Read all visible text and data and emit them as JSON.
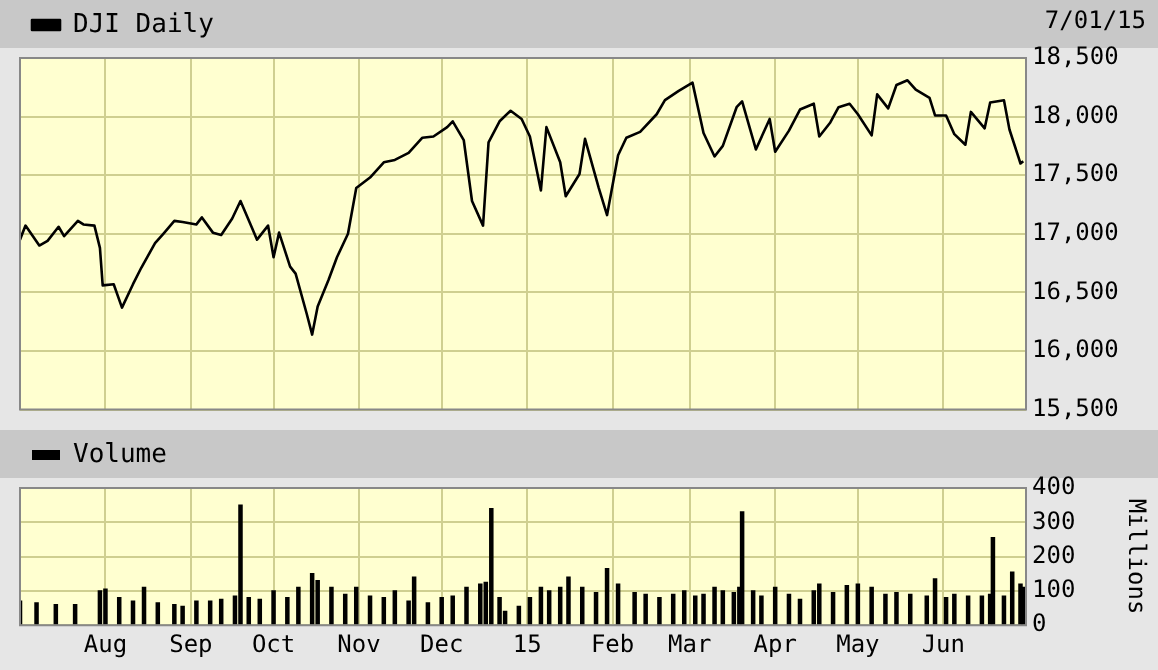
{
  "chart_data": [
    {
      "type": "line",
      "annotations": [
        "7/01/15"
      ],
      "legend": "top left",
      "grid": true,
      "tick_labels": "y",
      "marker": "none",
      "line_style": "solid",
      "xlim": [
        "2014-07-01",
        "2015-07-01"
      ],
      "xticks": [
        {
          "value": "2014-08-01",
          "label": null
        },
        {
          "value": "2014-09-01",
          "label": null
        },
        {
          "value": "2014-10-01",
          "label": null
        },
        {
          "value": "2014-11-01",
          "label": null
        },
        {
          "value": "2014-12-01",
          "label": null
        },
        {
          "value": "2015-01-01",
          "label": null
        },
        {
          "value": "2015-02-01",
          "label": null
        },
        {
          "value": "2015-03-01",
          "label": null
        },
        {
          "value": "2015-04-01",
          "label": null
        },
        {
          "value": "2015-05-01",
          "label": null
        },
        {
          "value": "2015-06-01",
          "label": null
        }
      ],
      "ylim": [
        15500,
        18500
      ],
      "yticks": [
        {
          "value": 15500,
          "label": "15,500"
        },
        {
          "value": 16000,
          "label": "16,000"
        },
        {
          "value": 16500,
          "label": "16,500"
        },
        {
          "value": 17000,
          "label": "17,000"
        },
        {
          "value": 17500,
          "label": "17,500"
        },
        {
          "value": 18000,
          "label": "18,000"
        },
        {
          "value": 18500,
          "label": "18,500"
        }
      ],
      "x": [
        "2014-07-01",
        "2014-07-03",
        "2014-07-08",
        "2014-07-11",
        "2014-07-15",
        "2014-07-17",
        "2014-07-22",
        "2014-07-24",
        "2014-07-28",
        "2014-07-30",
        "2014-07-31",
        "2014-08-04",
        "2014-08-07",
        "2014-08-11",
        "2014-08-14",
        "2014-08-19",
        "2014-08-22",
        "2014-08-26",
        "2014-08-29",
        "2014-09-03",
        "2014-09-05",
        "2014-09-09",
        "2014-09-12",
        "2014-09-16",
        "2014-09-19",
        "2014-09-23",
        "2014-09-25",
        "2014-09-29",
        "2014-10-01",
        "2014-10-03",
        "2014-10-07",
        "2014-10-09",
        "2014-10-13",
        "2014-10-15",
        "2014-10-17",
        "2014-10-21",
        "2014-10-24",
        "2014-10-28",
        "2014-10-31",
        "2014-11-05",
        "2014-11-10",
        "2014-11-14",
        "2014-11-19",
        "2014-11-24",
        "2014-11-28",
        "2014-12-03",
        "2014-12-05",
        "2014-12-09",
        "2014-12-12",
        "2014-12-16",
        "2014-12-18",
        "2014-12-22",
        "2014-12-26",
        "2014-12-30",
        "2015-01-02",
        "2015-01-06",
        "2015-01-08",
        "2015-01-13",
        "2015-01-15",
        "2015-01-20",
        "2015-01-22",
        "2015-01-27",
        "2015-01-30",
        "2015-02-03",
        "2015-02-06",
        "2015-02-11",
        "2015-02-17",
        "2015-02-20",
        "2015-02-25",
        "2015-03-02",
        "2015-03-06",
        "2015-03-10",
        "2015-03-13",
        "2015-03-18",
        "2015-03-20",
        "2015-03-25",
        "2015-03-30",
        "2015-04-01",
        "2015-04-06",
        "2015-04-10",
        "2015-04-15",
        "2015-04-17",
        "2015-04-21",
        "2015-04-24",
        "2015-04-28",
        "2015-05-01",
        "2015-05-06",
        "2015-05-08",
        "2015-05-12",
        "2015-05-15",
        "2015-05-19",
        "2015-05-22",
        "2015-05-27",
        "2015-05-29",
        "2015-06-02",
        "2015-06-05",
        "2015-06-09",
        "2015-06-11",
        "2015-06-16",
        "2015-06-18",
        "2015-06-23",
        "2015-06-25",
        "2015-06-29",
        "2015-06-30"
      ],
      "series": [
        {
          "name": "DJI Daily",
          "color": "#000000",
          "values": [
            16950,
            17070,
            16900,
            16940,
            17060,
            16980,
            17110,
            17080,
            17070,
            16880,
            16560,
            16570,
            16370,
            16570,
            16710,
            16920,
            17000,
            17110,
            17100,
            17080,
            17140,
            17010,
            16990,
            17130,
            17280,
            17060,
            16950,
            17070,
            16800,
            17010,
            16720,
            16660,
            16320,
            16140,
            16380,
            16610,
            16800,
            17000,
            17390,
            17480,
            17610,
            17630,
            17690,
            17820,
            17830,
            17910,
            17960,
            17800,
            17280,
            17070,
            17780,
            17960,
            18050,
            17980,
            17830,
            17370,
            17910,
            17610,
            17320,
            17510,
            17810,
            17390,
            17160,
            17670,
            17820,
            17870,
            18020,
            18140,
            18220,
            18290,
            17860,
            17660,
            17750,
            18080,
            18130,
            17720,
            17980,
            17700,
            17880,
            18060,
            18110,
            17830,
            17950,
            18080,
            18110,
            18020,
            17840,
            18190,
            18070,
            18270,
            18310,
            18230,
            18160,
            18010,
            18010,
            17850,
            17760,
            18040,
            17900,
            18120,
            18140,
            17890,
            17600,
            17620
          ]
        }
      ]
    },
    {
      "type": "bar",
      "legend": "top left",
      "grid": true,
      "ylabel": "Millions",
      "xlim": [
        "2014-07-01",
        "2015-07-01"
      ],
      "xticks": [
        {
          "value": "2014-08-01",
          "label": "Aug"
        },
        {
          "value": "2014-09-01",
          "label": "Sep"
        },
        {
          "value": "2014-10-01",
          "label": "Oct"
        },
        {
          "value": "2014-11-01",
          "label": "Nov"
        },
        {
          "value": "2014-12-01",
          "label": "Dec"
        },
        {
          "value": "2015-01-01",
          "label": "15"
        },
        {
          "value": "2015-02-01",
          "label": "Feb"
        },
        {
          "value": "2015-03-01",
          "label": "Mar"
        },
        {
          "value": "2015-04-01",
          "label": "Apr"
        },
        {
          "value": "2015-05-01",
          "label": "May"
        },
        {
          "value": "2015-06-01",
          "label": "Jun"
        }
      ],
      "ylim": [
        0,
        400
      ],
      "yticks": [
        0,
        100,
        200,
        300,
        400
      ],
      "x": [
        "2014-07-01",
        "2014-07-07",
        "2014-07-14",
        "2014-07-21",
        "2014-07-30",
        "2014-08-01",
        "2014-08-06",
        "2014-08-11",
        "2014-08-15",
        "2014-08-20",
        "2014-08-26",
        "2014-08-29",
        "2014-09-03",
        "2014-09-08",
        "2014-09-12",
        "2014-09-17",
        "2014-09-19",
        "2014-09-22",
        "2014-09-26",
        "2014-10-01",
        "2014-10-06",
        "2014-10-10",
        "2014-10-15",
        "2014-10-17",
        "2014-10-22",
        "2014-10-27",
        "2014-10-31",
        "2014-11-05",
        "2014-11-10",
        "2014-11-14",
        "2014-11-19",
        "2014-11-21",
        "2014-11-26",
        "2014-12-01",
        "2014-12-05",
        "2014-12-10",
        "2014-12-15",
        "2014-12-17",
        "2014-12-19",
        "2014-12-22",
        "2014-12-24",
        "2014-12-29",
        "2015-01-02",
        "2015-01-06",
        "2015-01-09",
        "2015-01-13",
        "2015-01-16",
        "2015-01-21",
        "2015-01-26",
        "2015-01-30",
        "2015-02-03",
        "2015-02-09",
        "2015-02-13",
        "2015-02-18",
        "2015-02-23",
        "2015-02-27",
        "2015-03-03",
        "2015-03-06",
        "2015-03-10",
        "2015-03-13",
        "2015-03-17",
        "2015-03-19",
        "2015-03-20",
        "2015-03-24",
        "2015-03-27",
        "2015-04-01",
        "2015-04-06",
        "2015-04-10",
        "2015-04-15",
        "2015-04-17",
        "2015-04-22",
        "2015-04-27",
        "2015-05-01",
        "2015-05-06",
        "2015-05-11",
        "2015-05-15",
        "2015-05-20",
        "2015-05-26",
        "2015-05-29",
        "2015-06-02",
        "2015-06-05",
        "2015-06-10",
        "2015-06-15",
        "2015-06-18",
        "2015-06-19",
        "2015-06-23",
        "2015-06-26",
        "2015-06-29",
        "2015-06-30"
      ],
      "series": [
        {
          "name": "Volume",
          "color": "#000000",
          "values": [
            70,
            65,
            60,
            60,
            100,
            105,
            80,
            70,
            110,
            65,
            60,
            55,
            70,
            70,
            75,
            85,
            350,
            80,
            75,
            100,
            80,
            110,
            150,
            130,
            110,
            90,
            110,
            85,
            80,
            100,
            70,
            140,
            65,
            80,
            85,
            110,
            120,
            125,
            340,
            80,
            40,
            55,
            80,
            110,
            100,
            110,
            140,
            110,
            95,
            165,
            120,
            95,
            90,
            80,
            90,
            100,
            85,
            90,
            110,
            100,
            95,
            110,
            330,
            100,
            85,
            110,
            90,
            75,
            100,
            120,
            95,
            115,
            120,
            110,
            90,
            95,
            90,
            85,
            135,
            80,
            90,
            85,
            85,
            90,
            255,
            85,
            155,
            120,
            110
          ]
        }
      ]
    }
  ]
}
